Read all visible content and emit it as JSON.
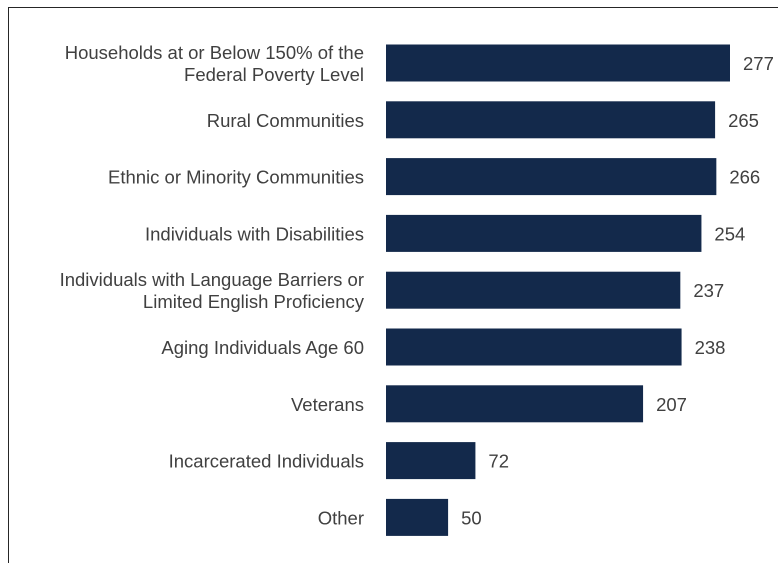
{
  "chart_data": {
    "type": "bar",
    "orientation": "horizontal",
    "categories": [
      [
        "Households at or Below 150% of the",
        "Federal Poverty Level"
      ],
      [
        "Rural Communities"
      ],
      [
        "Ethnic or Minority Communities"
      ],
      [
        "Individuals with Disabilities"
      ],
      [
        "Individuals with Language Barriers or",
        "Limited English Proficiency"
      ],
      [
        "Aging Individuals Age 60"
      ],
      [
        "Veterans"
      ],
      [
        "Incarcerated Individuals"
      ],
      [
        "Other"
      ]
    ],
    "values": [
      277,
      265,
      266,
      254,
      237,
      238,
      207,
      72,
      50
    ],
    "xlim": [
      0,
      280
    ],
    "bar_color": "#13294B",
    "grid": false,
    "data_labels": true
  }
}
